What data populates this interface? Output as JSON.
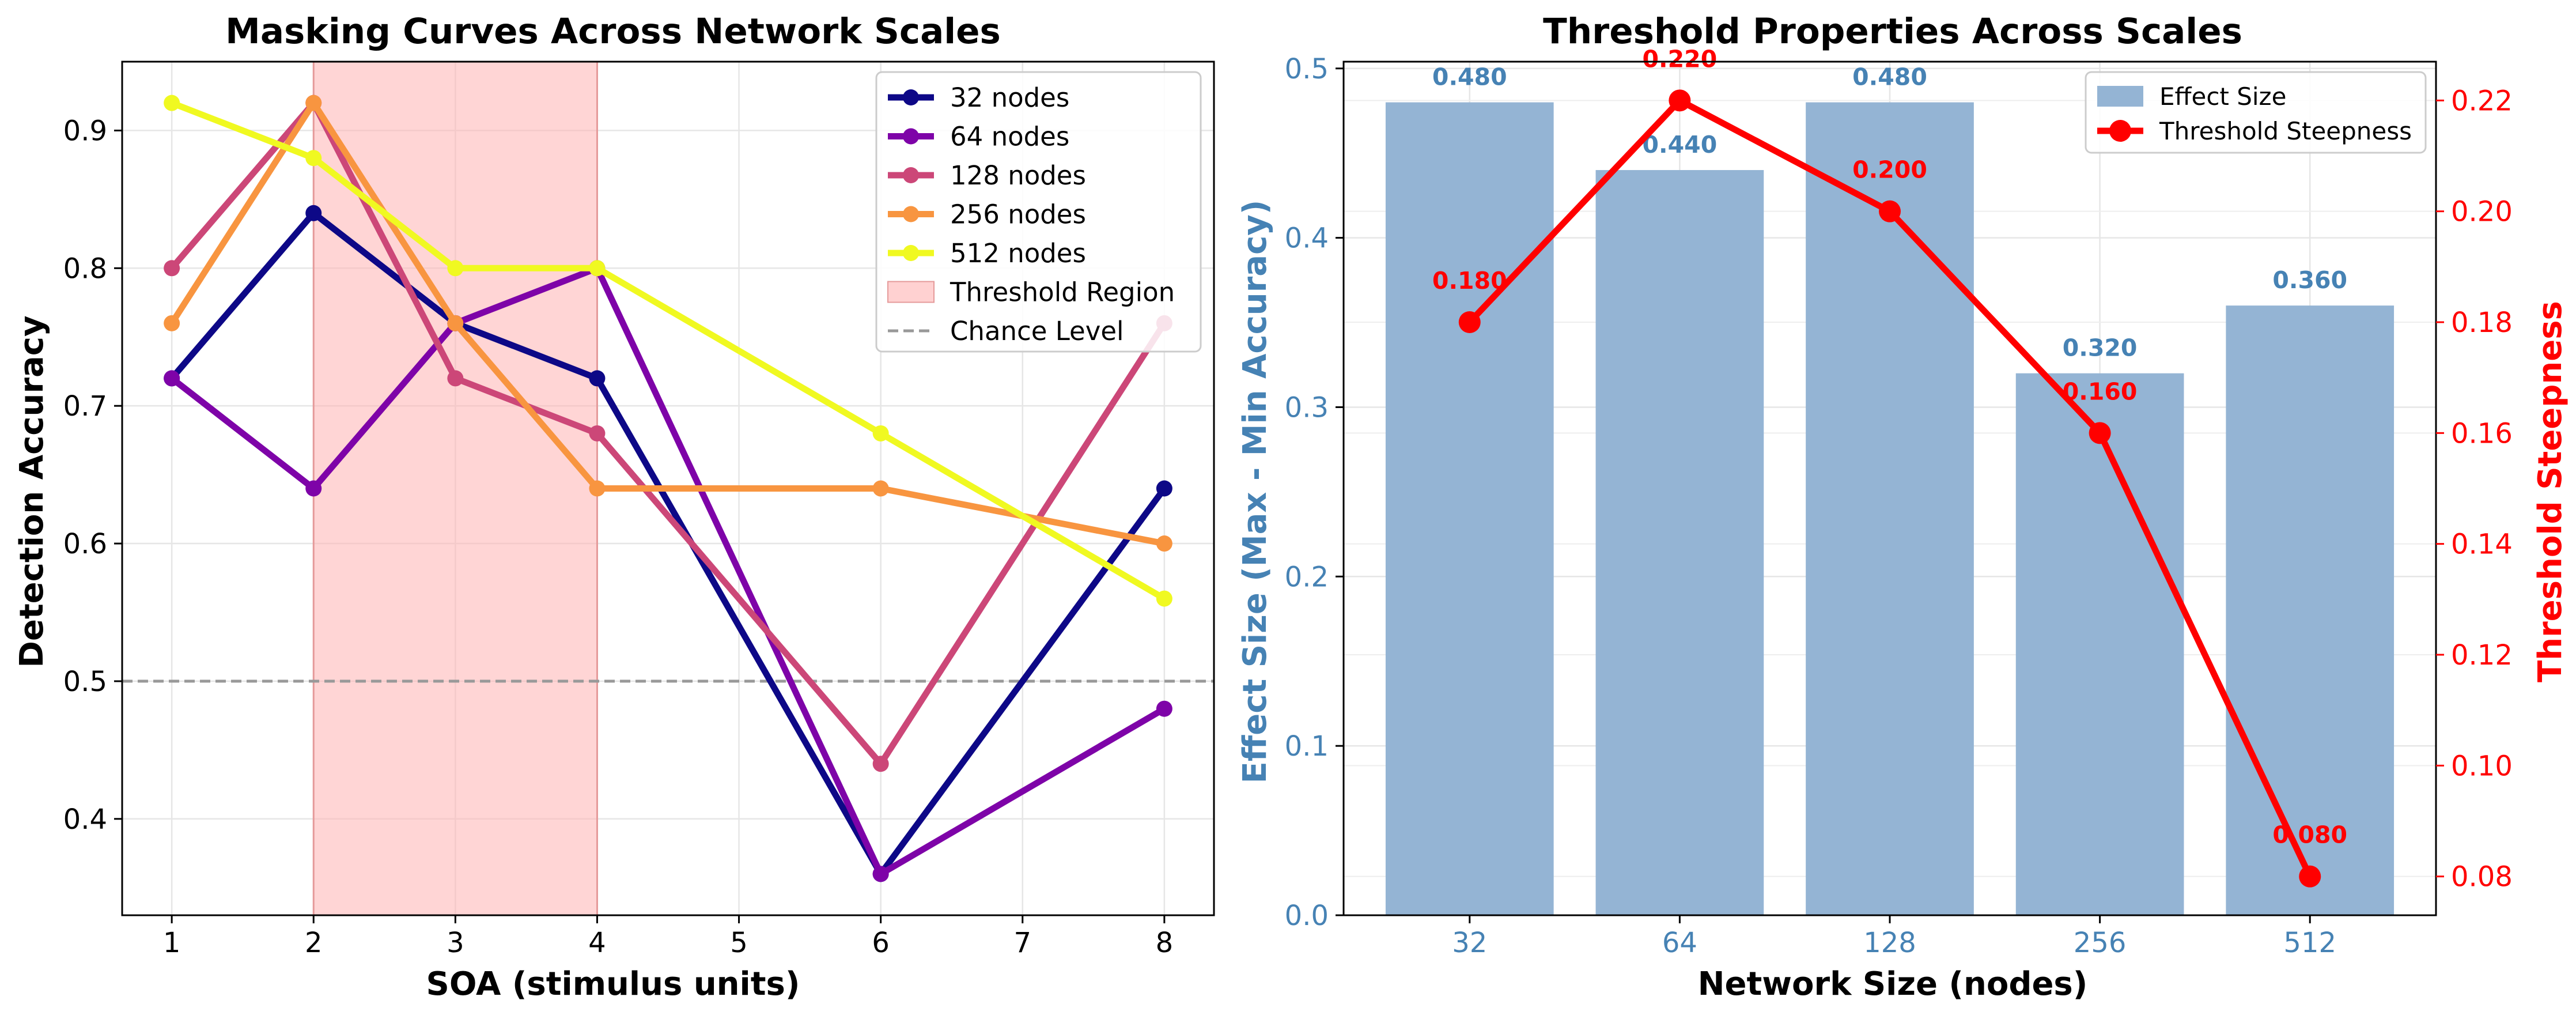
{
  "colors": {
    "series_32": "#0d0887",
    "series_64": "#7e03a8",
    "series_128": "#cc4778",
    "series_256": "#f89540",
    "series_512": "#f0f921",
    "threshold_region": "#ffb3b3",
    "chance_line": "#999999",
    "bar": "#94b4d4",
    "bar_label": "#4682b4",
    "steepness": "#ff0000",
    "left_axis": "#4682b4",
    "right_axis": "#ff0000"
  },
  "chart_data": [
    {
      "type": "line",
      "title": "Masking Curves Across Network Scales",
      "xlabel": "SOA (stimulus units)",
      "ylabel": "Detection Accuracy",
      "xlim": [
        0.65,
        8.35
      ],
      "ylim": [
        0.33,
        0.95
      ],
      "xticks": [
        "1",
        "2",
        "3",
        "4",
        "5",
        "6",
        "7",
        "8"
      ],
      "yticks": [
        "0.4",
        "0.5",
        "0.6",
        "0.7",
        "0.8",
        "0.9"
      ],
      "grid": true,
      "legend_position": "top-right",
      "x": [
        1,
        2,
        3,
        4,
        6,
        8
      ],
      "series": [
        {
          "name": "32 nodes",
          "values": [
            0.72,
            0.84,
            0.76,
            0.72,
            0.36,
            0.64
          ]
        },
        {
          "name": "64 nodes",
          "values": [
            0.72,
            0.64,
            0.76,
            0.8,
            0.36,
            0.48
          ]
        },
        {
          "name": "128 nodes",
          "values": [
            0.8,
            0.92,
            0.72,
            0.68,
            0.44,
            0.76
          ]
        },
        {
          "name": "256 nodes",
          "values": [
            0.76,
            0.92,
            0.76,
            0.64,
            0.64,
            0.6
          ]
        },
        {
          "name": "512 nodes",
          "values": [
            0.92,
            0.88,
            0.8,
            0.8,
            0.68,
            0.56
          ]
        }
      ],
      "threshold_region": {
        "label": "Threshold Region",
        "x_start": 2,
        "x_end": 4
      },
      "chance_level": {
        "label": "Chance Level",
        "y": 0.5
      }
    },
    {
      "type": "bar",
      "title": "Threshold Properties Across Scales",
      "xlabel": "Network Size (nodes)",
      "ylabel": "Effect Size (Max - Min Accuracy)",
      "y2label": "Threshold Steepness",
      "categories": [
        "32",
        "64",
        "128",
        "256",
        "512"
      ],
      "ylim": [
        0,
        0.504
      ],
      "y2lim": [
        0.073,
        0.227
      ],
      "yticks": [
        "0.0",
        "0.1",
        "0.2",
        "0.3",
        "0.4",
        "0.5"
      ],
      "y2ticks": [
        "0.08",
        "0.10",
        "0.12",
        "0.14",
        "0.16",
        "0.18",
        "0.20",
        "0.22"
      ],
      "grid": true,
      "legend_position": "top-right",
      "series": [
        {
          "name": "Effect Size",
          "kind": "bar",
          "axis": "left",
          "values": [
            0.48,
            0.44,
            0.48,
            0.32,
            0.36
          ],
          "labels": [
            "0.480",
            "0.440",
            "0.480",
            "0.320",
            "0.360"
          ]
        },
        {
          "name": "Threshold Steepness",
          "kind": "line",
          "axis": "right",
          "values": [
            0.18,
            0.22,
            0.2,
            0.16,
            0.08
          ],
          "labels": [
            "0.180",
            "0.220",
            "0.200",
            "0.160",
            "0.080"
          ]
        }
      ]
    }
  ]
}
